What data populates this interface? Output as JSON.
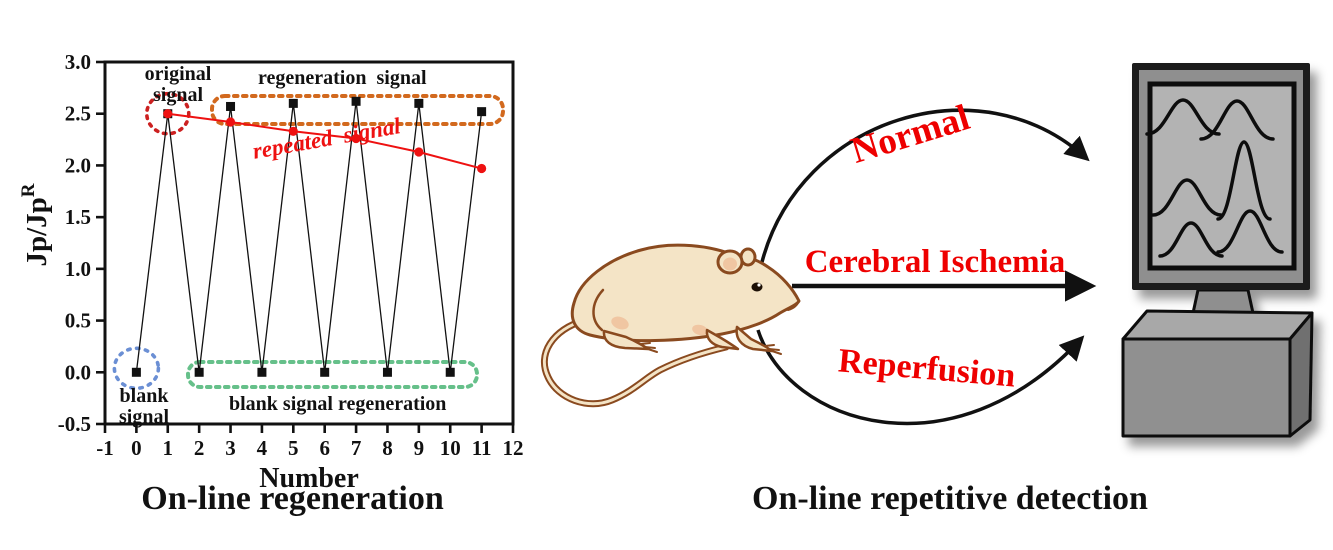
{
  "figure": {
    "left_caption": "On-line regeneration",
    "right_caption": "On-line repetitive detection"
  },
  "chart_data": {
    "type": "line",
    "title": "",
    "xlabel": "Number",
    "ylabel": "Jp/Jp",
    "ylabel_superscript": "R",
    "xlim": [
      -1,
      12
    ],
    "ylim": [
      -0.5,
      3.0
    ],
    "x_ticks": [
      -1,
      0,
      1,
      2,
      3,
      4,
      5,
      6,
      7,
      8,
      9,
      10,
      11,
      12
    ],
    "y_ticks": [
      3.0,
      2.5,
      2.0,
      1.5,
      1.0,
      0.5,
      0.0,
      -0.5
    ],
    "grid": false,
    "legend": "none",
    "series": [
      {
        "name": "regeneration signal (black squares)",
        "marker": "square",
        "color": "#111111",
        "line_width": 1.3,
        "x": [
          0,
          1,
          2,
          3,
          4,
          5,
          6,
          7,
          8,
          9,
          10,
          11
        ],
        "y": [
          0.0,
          2.5,
          0.0,
          2.57,
          0.0,
          2.6,
          0.0,
          2.62,
          0.0,
          2.6,
          0.0,
          2.52
        ]
      },
      {
        "name": "repeated signal (red circles)",
        "marker": "circle",
        "color": "#ee1111",
        "line_width": 2,
        "x": [
          1,
          3,
          5,
          7,
          9,
          11
        ],
        "y": [
          2.5,
          2.42,
          2.33,
          2.26,
          2.13,
          1.97
        ]
      }
    ],
    "annotations": {
      "original_line1": "original",
      "original_line2": "signal",
      "regeneration": "regeneration  signal",
      "repeated": "repeated  signal",
      "blank_line1": "blank",
      "blank_line2": "signal",
      "blank_regen": "blank signal regeneration"
    },
    "annotation_colors": {
      "original_circle": "#cc2020",
      "regeneration_box": "#d2691e",
      "blank_circle": "#6b8fd4",
      "blank_box": "#66c08a",
      "repeated_text": "#ee1111"
    }
  },
  "right_panel": {
    "arrow_labels": {
      "top": "Normal",
      "middle": "Cerebral Ischemia",
      "bottom": "Reperfusion"
    },
    "label_color": "#ee0000",
    "arrow_color": "#111111",
    "monitor_traces": 6
  }
}
